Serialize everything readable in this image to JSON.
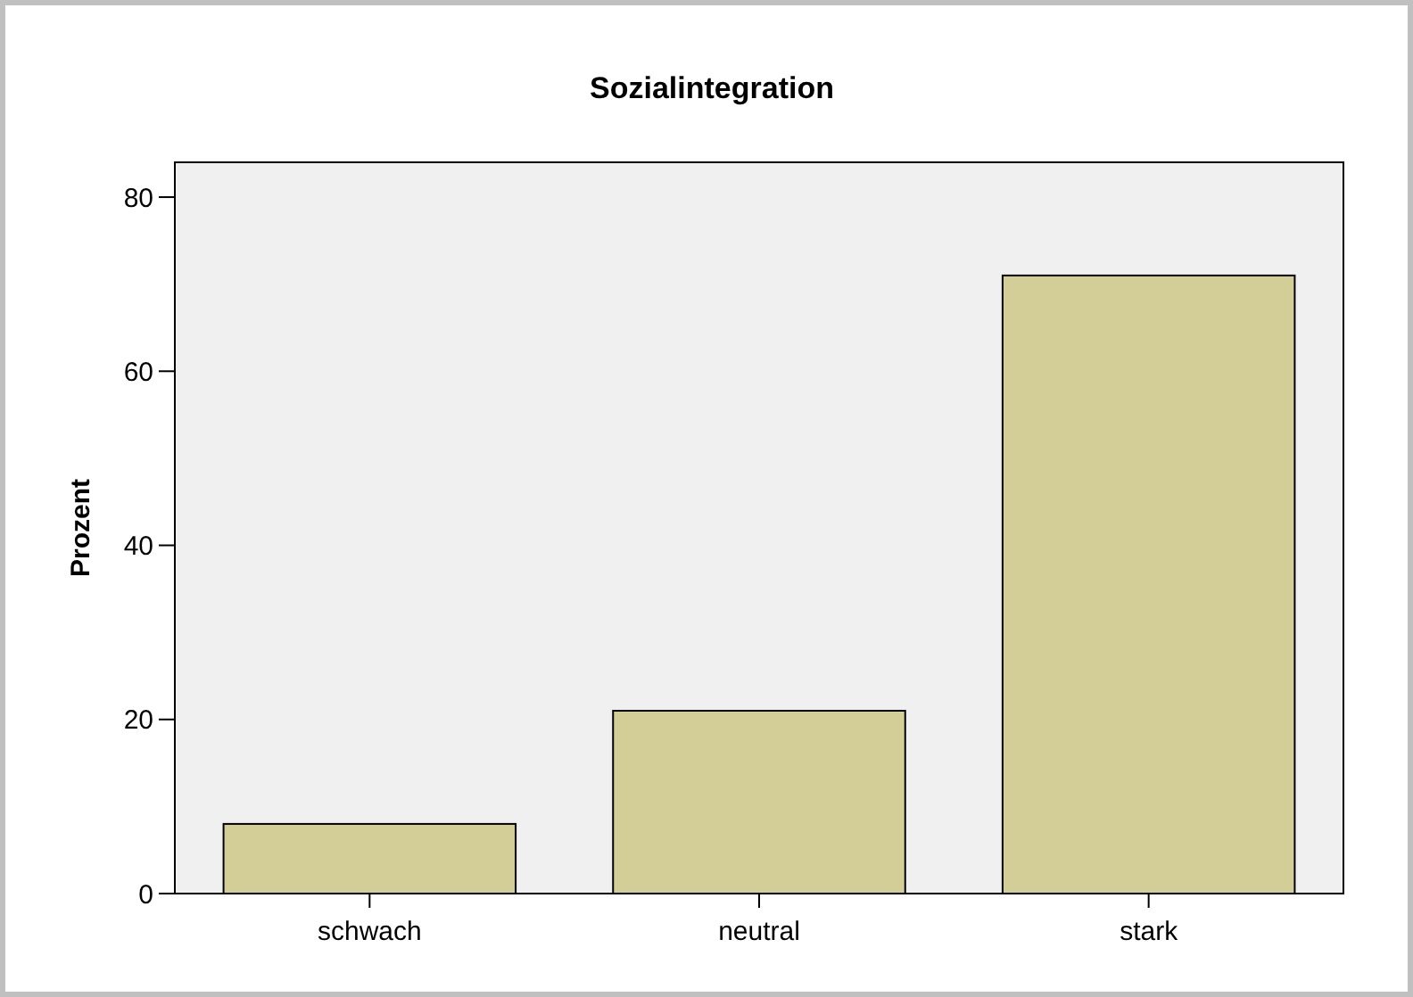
{
  "chart_data": {
    "type": "bar",
    "title": "Sozialintegration",
    "ylabel": "Prozent",
    "categories": [
      "schwach",
      "neutral",
      "stark"
    ],
    "values": [
      8,
      21,
      71
    ],
    "color": "#d3ce97",
    "ylim": [
      0,
      84
    ],
    "yticks": [
      0,
      20,
      40,
      60,
      80
    ],
    "grid": false
  }
}
